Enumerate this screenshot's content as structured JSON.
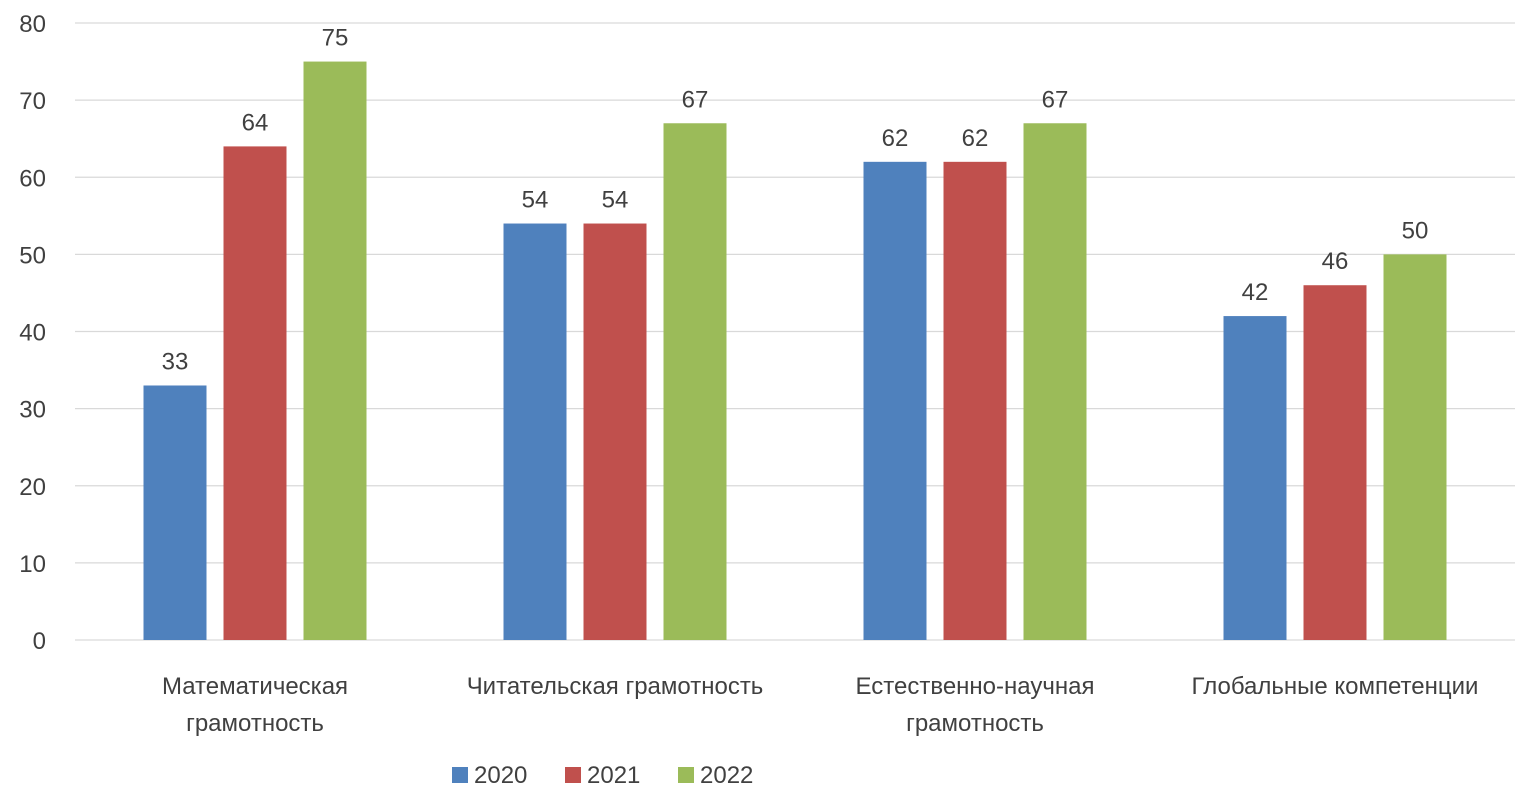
{
  "chart_data": {
    "type": "bar",
    "categories": [
      [
        "Математическая",
        "грамотность"
      ],
      [
        "Читательская грамотность"
      ],
      [
        "Естественно-научная",
        "грамотность"
      ],
      [
        "Глобальные компетенции"
      ]
    ],
    "series": [
      {
        "name": "2020",
        "color": "#4f81bd",
        "values": [
          33,
          54,
          62,
          42
        ]
      },
      {
        "name": "2021",
        "color": "#c0504d",
        "values": [
          64,
          54,
          62,
          46
        ]
      },
      {
        "name": "2022",
        "color": "#9bbb59",
        "values": [
          75,
          67,
          67,
          50
        ]
      }
    ],
    "ylim": [
      0,
      80
    ],
    "yticks": [
      0,
      10,
      20,
      30,
      40,
      50,
      60,
      70,
      80
    ],
    "grid": true,
    "legend_position": "bottom",
    "data_labels": true,
    "title": "",
    "xlabel": "",
    "ylabel": ""
  }
}
